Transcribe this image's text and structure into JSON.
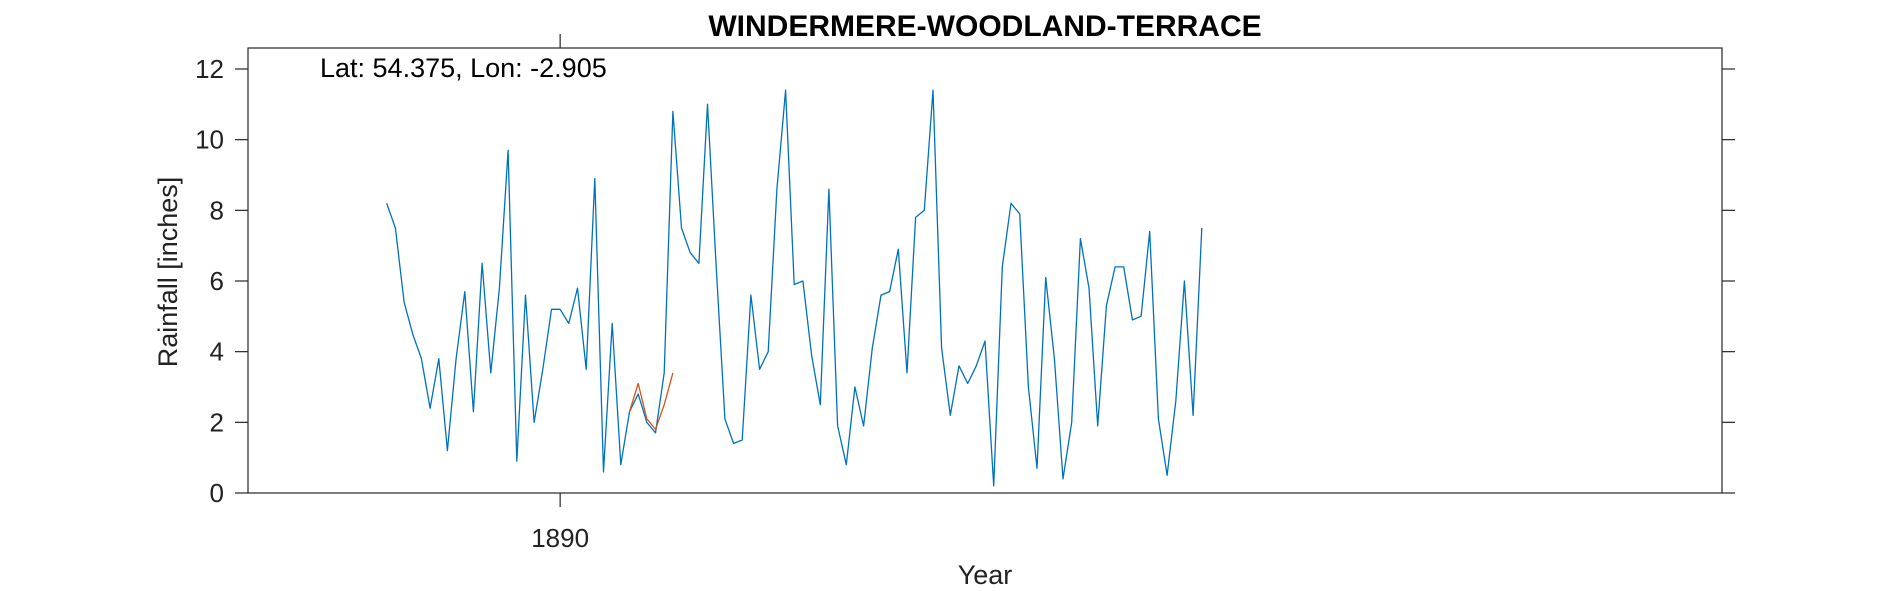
{
  "chart_data": {
    "type": "line",
    "title": "WINDERMERE-WOODLAND-TERRACE",
    "xlabel": "Year",
    "ylabel": "Rainfall [inches]",
    "annotation": "Lat: 54.375, Lon: -2.905",
    "xlim": [
      1872,
      1957
    ],
    "ylim": [
      0,
      12.5
    ],
    "x_ticks": [
      1890
    ],
    "x_tick_labels": [
      "1890"
    ],
    "y_ticks": [
      0,
      2,
      4,
      6,
      8,
      10,
      12
    ],
    "y_tick_labels": [
      "0",
      "2",
      "4",
      "6",
      "8",
      "10",
      "12"
    ],
    "grid": false,
    "series": [
      {
        "color": "#0072BD",
        "x_start": 1880,
        "x_step": 0.5,
        "values": [
          8.2,
          7.5,
          5.4,
          4.5,
          3.8,
          2.4,
          3.8,
          1.2,
          3.8,
          5.7,
          2.3,
          6.5,
          3.4,
          5.8,
          9.7,
          0.9,
          5.6,
          2.0,
          3.5,
          5.2,
          5.2,
          4.8,
          5.8,
          3.5,
          8.9,
          0.6,
          4.8,
          0.8,
          2.3,
          2.8,
          2.0,
          1.7,
          3.4,
          10.8,
          7.5,
          6.8,
          6.5,
          11.0,
          6.4,
          2.1,
          1.4,
          1.5,
          5.6,
          3.5,
          4.0,
          8.6,
          11.4,
          5.9,
          6.0,
          3.9,
          2.5,
          8.6,
          1.9,
          0.8,
          3.0,
          1.9,
          4.1,
          5.6,
          5.7,
          6.9,
          3.4,
          7.8,
          8.0,
          11.4,
          4.1,
          2.2,
          3.6,
          3.1,
          3.6,
          4.3,
          0.2,
          6.4,
          8.2,
          7.9,
          3.0,
          0.7,
          6.1,
          3.8,
          0.4,
          2.0,
          7.2,
          5.8,
          1.9,
          5.3,
          6.4,
          6.4,
          4.9,
          5.0,
          7.4,
          2.1,
          0.5,
          2.6,
          6.0,
          2.2,
          7.5
        ]
      },
      {
        "color": "#D95319",
        "x": [
          1894,
          1894.5,
          1895,
          1895.5,
          1896,
          1896.5
        ],
        "values": [
          2.3,
          3.1,
          2.1,
          1.8,
          2.5,
          3.4
        ]
      }
    ]
  }
}
